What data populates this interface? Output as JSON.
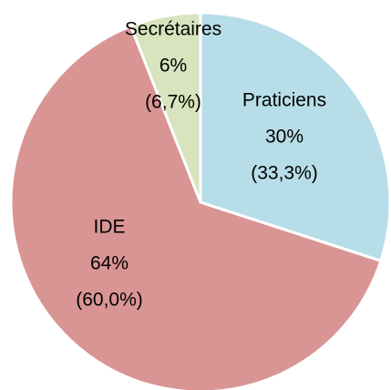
{
  "chart_data": {
    "type": "pie",
    "categories": [
      "Praticiens",
      "IDE",
      "Secrétaires"
    ],
    "values": [
      30,
      64,
      6
    ],
    "value_labels": [
      "30%",
      "64%",
      "6%"
    ],
    "secondary_labels": [
      "(33,3%)",
      "(60,0%)",
      "(6,7%)"
    ],
    "colors": [
      "#b7dde8",
      "#d99594",
      "#d7e4bd"
    ]
  }
}
